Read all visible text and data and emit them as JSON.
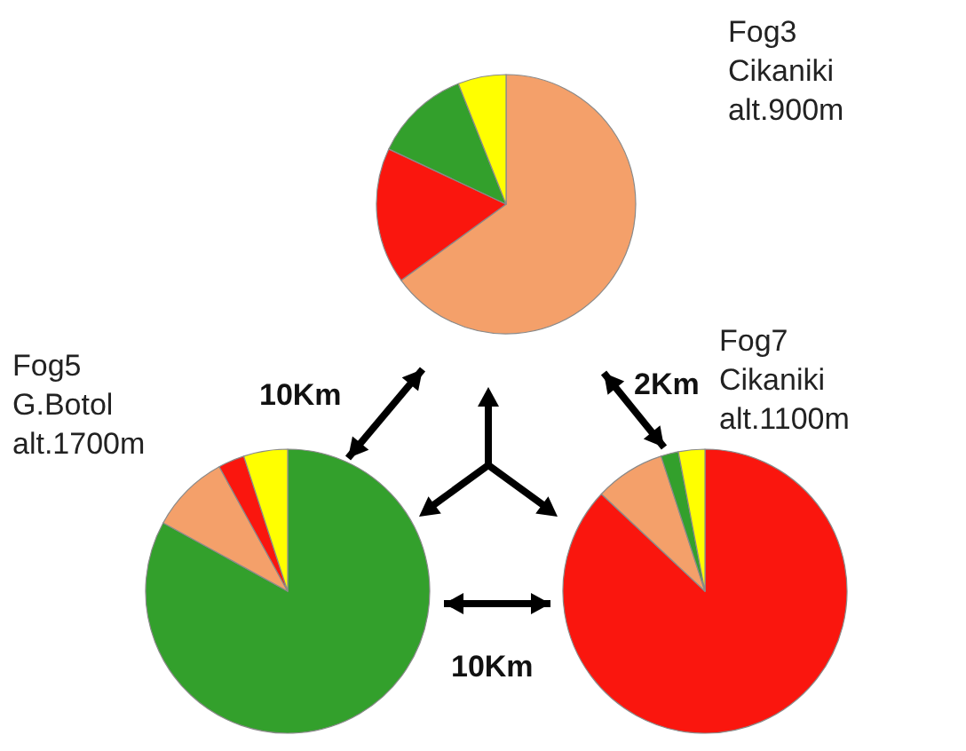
{
  "chart_data": [
    {
      "type": "pie",
      "title": "Fog3\nCikaniki\nalt.900m",
      "categories": [
        null,
        null,
        null,
        null
      ],
      "values": [
        65,
        17,
        12,
        6
      ],
      "colors": [
        "#f4a06a",
        "#fa160e",
        "#33a02c",
        "#ffff00"
      ]
    },
    {
      "type": "pie",
      "title": "Fog5\nG.Botol\nalt.1700m",
      "categories": [
        null,
        null,
        null,
        null
      ],
      "values": [
        83,
        9,
        3,
        5
      ],
      "colors": [
        "#33a02c",
        "#f4a06a",
        "#fa160e",
        "#ffff00"
      ]
    },
    {
      "type": "pie",
      "title": "Fog7\nCikaniki\nalt.1100m",
      "categories": [
        null,
        null,
        null,
        null
      ],
      "values": [
        87,
        8,
        2,
        3
      ],
      "colors": [
        "#fa160e",
        "#f4a06a",
        "#33a02c",
        "#ffff00"
      ]
    },
    {
      "type": "other",
      "annotations": [
        "10Km",
        "2Km",
        "10Km"
      ]
    }
  ]
}
